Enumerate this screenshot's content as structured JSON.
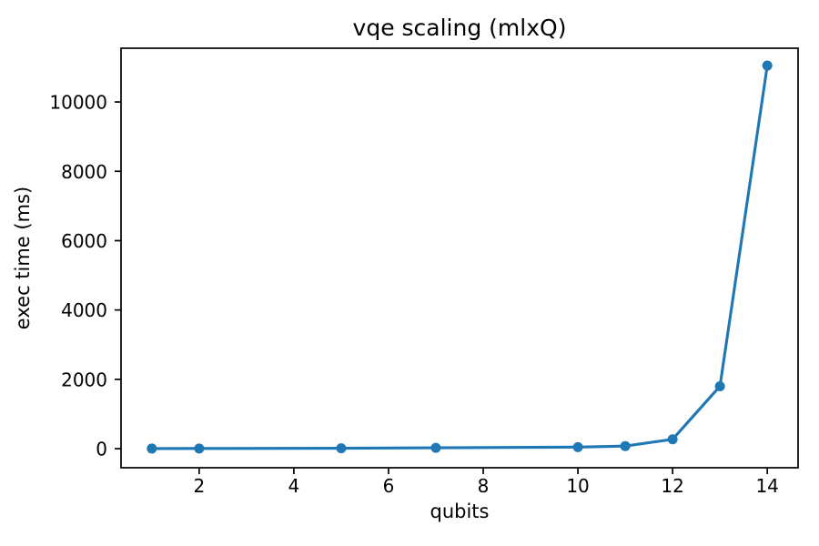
{
  "chart_data": {
    "type": "line",
    "title": "vqe scaling (mlxQ)",
    "xlabel": "qubits",
    "ylabel": "exec time (ms)",
    "series": [
      {
        "name": "exec time",
        "x": [
          1,
          2,
          5,
          7,
          10,
          11,
          12,
          13,
          14
        ],
        "y": [
          3,
          5,
          12,
          25,
          45,
          75,
          270,
          1800,
          11050
        ]
      }
    ],
    "xticks": [
      2,
      4,
      6,
      8,
      10,
      12,
      14
    ],
    "yticks": [
      0,
      2000,
      4000,
      6000,
      8000,
      10000
    ],
    "xlim": [
      0.35,
      14.65
    ],
    "ylim": [
      -550,
      11550
    ],
    "grid": false,
    "legend": "none",
    "line_color": "#1f77b4",
    "marker": "circle",
    "background_color": "#ffffff",
    "text_color": "#000000",
    "spine_color": "#000000"
  }
}
